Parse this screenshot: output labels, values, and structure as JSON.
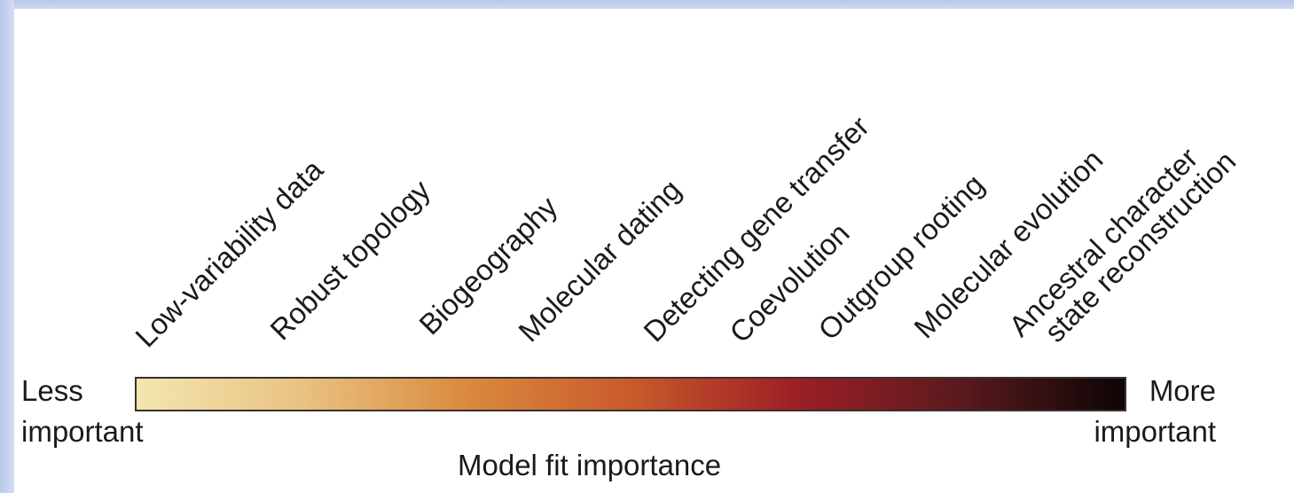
{
  "scale": {
    "categories": [
      {
        "lines": [
          "Low-variability data"
        ]
      },
      {
        "lines": [
          "Robust topology"
        ]
      },
      {
        "lines": [
          "Biogeography"
        ]
      },
      {
        "lines": [
          "Molecular dating"
        ]
      },
      {
        "lines": [
          "Detecting gene transfer"
        ]
      },
      {
        "lines": [
          "Coevolution"
        ]
      },
      {
        "lines": [
          "Outgroup rooting"
        ]
      },
      {
        "lines": [
          "Molecular evolution"
        ]
      },
      {
        "lines": [
          "Ancestral character",
          "state reconstruction"
        ]
      }
    ],
    "low_end": {
      "line1": "Less",
      "line2": "important"
    },
    "high_end": {
      "line1": "More",
      "line2": "important"
    },
    "axis_title": "Model fit importance",
    "gradient_colors": [
      "#f3e6b0",
      "#e9c282",
      "#d98a3e",
      "#c95a2c",
      "#9c1f26",
      "#5a1a1e",
      "#0d0505"
    ]
  }
}
